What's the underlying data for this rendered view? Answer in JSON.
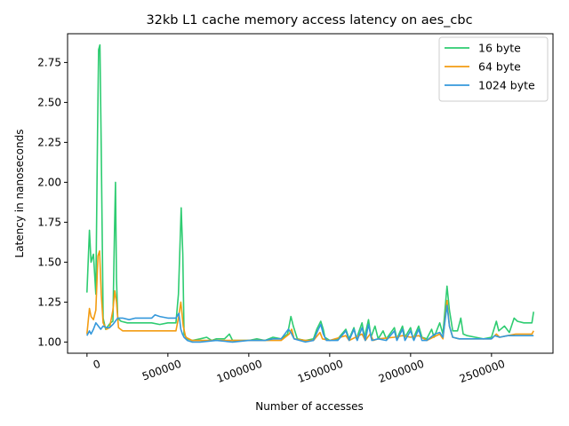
{
  "chart_data": {
    "type": "line",
    "title": "32kb L1 cache memory access latency on aes_cbc",
    "xlabel": "Number of accesses",
    "ylabel": "Latency in nanoseconds",
    "xlim": [
      -120000,
      2880000
    ],
    "ylim": [
      0.93,
      2.93
    ],
    "x_ticks": [
      0,
      500000,
      1000000,
      1500000,
      2000000,
      2500000
    ],
    "x_tick_labels": [
      "0",
      "500000",
      "1000000",
      "1500000",
      "2000000",
      "2500000"
    ],
    "y_ticks": [
      1.0,
      1.25,
      1.5,
      1.75,
      2.0,
      2.25,
      2.5,
      2.75
    ],
    "y_tick_labels": [
      "1.00",
      "1.25",
      "1.50",
      "1.75",
      "2.00",
      "2.25",
      "2.50",
      "2.75"
    ],
    "grid": false,
    "legend_position": "top-right",
    "series": [
      {
        "name": "16 byte",
        "color": "#2ecc71",
        "points": [
          [
            0,
            1.31
          ],
          [
            15000,
            1.7
          ],
          [
            25000,
            1.5
          ],
          [
            40000,
            1.55
          ],
          [
            55000,
            1.3
          ],
          [
            65000,
            2.3
          ],
          [
            72000,
            2.83
          ],
          [
            80000,
            2.86
          ],
          [
            88000,
            2.2
          ],
          [
            100000,
            1.15
          ],
          [
            115000,
            1.08
          ],
          [
            130000,
            1.1
          ],
          [
            145000,
            1.12
          ],
          [
            160000,
            1.13
          ],
          [
            170000,
            1.7
          ],
          [
            176000,
            2.0
          ],
          [
            182000,
            1.4
          ],
          [
            190000,
            1.15
          ],
          [
            210000,
            1.13
          ],
          [
            250000,
            1.12
          ],
          [
            300000,
            1.12
          ],
          [
            350000,
            1.12
          ],
          [
            400000,
            1.12
          ],
          [
            450000,
            1.11
          ],
          [
            500000,
            1.12
          ],
          [
            550000,
            1.12
          ],
          [
            565000,
            1.3
          ],
          [
            582000,
            1.84
          ],
          [
            592000,
            1.55
          ],
          [
            600000,
            1.05
          ],
          [
            620000,
            1.02
          ],
          [
            650000,
            1.01
          ],
          [
            700000,
            1.02
          ],
          [
            740000,
            1.03
          ],
          [
            770000,
            1.01
          ],
          [
            800000,
            1.02
          ],
          [
            850000,
            1.02
          ],
          [
            880000,
            1.05
          ],
          [
            900000,
            1.01
          ],
          [
            1000000,
            1.01
          ],
          [
            1050000,
            1.02
          ],
          [
            1100000,
            1.01
          ],
          [
            1150000,
            1.03
          ],
          [
            1200000,
            1.02
          ],
          [
            1240000,
            1.05
          ],
          [
            1260000,
            1.16
          ],
          [
            1275000,
            1.1
          ],
          [
            1300000,
            1.02
          ],
          [
            1350000,
            1.01
          ],
          [
            1400000,
            1.02
          ],
          [
            1420000,
            1.08
          ],
          [
            1445000,
            1.13
          ],
          [
            1460000,
            1.08
          ],
          [
            1470000,
            1.03
          ],
          [
            1500000,
            1.01
          ],
          [
            1550000,
            1.02
          ],
          [
            1600000,
            1.08
          ],
          [
            1620000,
            1.02
          ],
          [
            1650000,
            1.09
          ],
          [
            1665000,
            1.02
          ],
          [
            1700000,
            1.12
          ],
          [
            1715000,
            1.03
          ],
          [
            1740000,
            1.14
          ],
          [
            1755000,
            1.03
          ],
          [
            1780000,
            1.1
          ],
          [
            1800000,
            1.02
          ],
          [
            1830000,
            1.07
          ],
          [
            1850000,
            1.02
          ],
          [
            1900000,
            1.09
          ],
          [
            1915000,
            1.02
          ],
          [
            1950000,
            1.1
          ],
          [
            1965000,
            1.03
          ],
          [
            2000000,
            1.09
          ],
          [
            2015000,
            1.02
          ],
          [
            2050000,
            1.1
          ],
          [
            2070000,
            1.03
          ],
          [
            2100000,
            1.02
          ],
          [
            2130000,
            1.08
          ],
          [
            2145000,
            1.03
          ],
          [
            2180000,
            1.12
          ],
          [
            2200000,
            1.05
          ],
          [
            2225000,
            1.35
          ],
          [
            2240000,
            1.2
          ],
          [
            2260000,
            1.07
          ],
          [
            2290000,
            1.07
          ],
          [
            2310000,
            1.15
          ],
          [
            2325000,
            1.05
          ],
          [
            2350000,
            1.04
          ],
          [
            2400000,
            1.03
          ],
          [
            2450000,
            1.02
          ],
          [
            2500000,
            1.03
          ],
          [
            2530000,
            1.13
          ],
          [
            2545000,
            1.07
          ],
          [
            2580000,
            1.1
          ],
          [
            2610000,
            1.06
          ],
          [
            2640000,
            1.15
          ],
          [
            2660000,
            1.13
          ],
          [
            2700000,
            1.12
          ],
          [
            2750000,
            1.12
          ],
          [
            2760000,
            1.19
          ]
        ]
      },
      {
        "name": "64 byte",
        "color": "#f39c12",
        "points": [
          [
            0,
            1.05
          ],
          [
            15000,
            1.21
          ],
          [
            25000,
            1.16
          ],
          [
            40000,
            1.14
          ],
          [
            55000,
            1.2
          ],
          [
            68000,
            1.54
          ],
          [
            78000,
            1.57
          ],
          [
            88000,
            1.3
          ],
          [
            100000,
            1.12
          ],
          [
            120000,
            1.08
          ],
          [
            140000,
            1.09
          ],
          [
            160000,
            1.2
          ],
          [
            172000,
            1.32
          ],
          [
            182000,
            1.25
          ],
          [
            195000,
            1.09
          ],
          [
            220000,
            1.07
          ],
          [
            260000,
            1.07
          ],
          [
            300000,
            1.07
          ],
          [
            350000,
            1.07
          ],
          [
            400000,
            1.07
          ],
          [
            450000,
            1.07
          ],
          [
            500000,
            1.07
          ],
          [
            550000,
            1.07
          ],
          [
            565000,
            1.15
          ],
          [
            580000,
            1.25
          ],
          [
            595000,
            1.1
          ],
          [
            610000,
            1.03
          ],
          [
            650000,
            1.01
          ],
          [
            700000,
            1.01
          ],
          [
            800000,
            1.01
          ],
          [
            900000,
            1.01
          ],
          [
            1000000,
            1.01
          ],
          [
            1100000,
            1.01
          ],
          [
            1200000,
            1.01
          ],
          [
            1250000,
            1.05
          ],
          [
            1265000,
            1.08
          ],
          [
            1280000,
            1.02
          ],
          [
            1350000,
            1.01
          ],
          [
            1400000,
            1.01
          ],
          [
            1440000,
            1.06
          ],
          [
            1455000,
            1.02
          ],
          [
            1500000,
            1.01
          ],
          [
            1600000,
            1.04
          ],
          [
            1620000,
            1.01
          ],
          [
            1700000,
            1.05
          ],
          [
            1720000,
            1.01
          ],
          [
            1750000,
            1.05
          ],
          [
            1770000,
            1.01
          ],
          [
            1800000,
            1.02
          ],
          [
            1900000,
            1.03
          ],
          [
            1950000,
            1.04
          ],
          [
            2000000,
            1.03
          ],
          [
            2050000,
            1.04
          ],
          [
            2100000,
            1.01
          ],
          [
            2180000,
            1.05
          ],
          [
            2200000,
            1.02
          ],
          [
            2225000,
            1.26
          ],
          [
            2240000,
            1.1
          ],
          [
            2260000,
            1.03
          ],
          [
            2300000,
            1.02
          ],
          [
            2400000,
            1.02
          ],
          [
            2500000,
            1.02
          ],
          [
            2530000,
            1.05
          ],
          [
            2550000,
            1.03
          ],
          [
            2600000,
            1.04
          ],
          [
            2650000,
            1.05
          ],
          [
            2700000,
            1.05
          ],
          [
            2750000,
            1.05
          ],
          [
            2760000,
            1.07
          ]
        ]
      },
      {
        "name": "1024 byte",
        "color": "#3498db",
        "points": [
          [
            0,
            1.04
          ],
          [
            15000,
            1.07
          ],
          [
            25000,
            1.05
          ],
          [
            40000,
            1.08
          ],
          [
            55000,
            1.12
          ],
          [
            70000,
            1.1
          ],
          [
            85000,
            1.08
          ],
          [
            100000,
            1.1
          ],
          [
            120000,
            1.09
          ],
          [
            140000,
            1.09
          ],
          [
            160000,
            1.11
          ],
          [
            175000,
            1.13
          ],
          [
            190000,
            1.15
          ],
          [
            220000,
            1.15
          ],
          [
            260000,
            1.14
          ],
          [
            300000,
            1.15
          ],
          [
            350000,
            1.15
          ],
          [
            400000,
            1.15
          ],
          [
            420000,
            1.17
          ],
          [
            450000,
            1.16
          ],
          [
            500000,
            1.15
          ],
          [
            550000,
            1.15
          ],
          [
            568000,
            1.18
          ],
          [
            580000,
            1.08
          ],
          [
            590000,
            1.05
          ],
          [
            600000,
            1.03
          ],
          [
            620000,
            1.01
          ],
          [
            650000,
            1.0
          ],
          [
            700000,
            1.0
          ],
          [
            800000,
            1.01
          ],
          [
            900000,
            1.0
          ],
          [
            1000000,
            1.01
          ],
          [
            1100000,
            1.01
          ],
          [
            1150000,
            1.02
          ],
          [
            1200000,
            1.02
          ],
          [
            1245000,
            1.08
          ],
          [
            1260000,
            1.06
          ],
          [
            1280000,
            1.02
          ],
          [
            1350000,
            1.0
          ],
          [
            1400000,
            1.01
          ],
          [
            1430000,
            1.08
          ],
          [
            1445000,
            1.11
          ],
          [
            1460000,
            1.05
          ],
          [
            1480000,
            1.01
          ],
          [
            1550000,
            1.01
          ],
          [
            1600000,
            1.07
          ],
          [
            1620000,
            1.01
          ],
          [
            1650000,
            1.08
          ],
          [
            1670000,
            1.01
          ],
          [
            1700000,
            1.09
          ],
          [
            1720000,
            1.01
          ],
          [
            1740000,
            1.11
          ],
          [
            1760000,
            1.01
          ],
          [
            1800000,
            1.02
          ],
          [
            1850000,
            1.01
          ],
          [
            1900000,
            1.07
          ],
          [
            1915000,
            1.01
          ],
          [
            1950000,
            1.08
          ],
          [
            1965000,
            1.01
          ],
          [
            2000000,
            1.07
          ],
          [
            2020000,
            1.01
          ],
          [
            2050000,
            1.08
          ],
          [
            2070000,
            1.01
          ],
          [
            2100000,
            1.01
          ],
          [
            2150000,
            1.05
          ],
          [
            2180000,
            1.06
          ],
          [
            2200000,
            1.03
          ],
          [
            2225000,
            1.23
          ],
          [
            2240000,
            1.1
          ],
          [
            2260000,
            1.03
          ],
          [
            2300000,
            1.02
          ],
          [
            2400000,
            1.02
          ],
          [
            2500000,
            1.02
          ],
          [
            2520000,
            1.04
          ],
          [
            2550000,
            1.03
          ],
          [
            2600000,
            1.04
          ],
          [
            2650000,
            1.04
          ],
          [
            2700000,
            1.04
          ],
          [
            2750000,
            1.04
          ],
          [
            2760000,
            1.04
          ]
        ]
      }
    ]
  }
}
